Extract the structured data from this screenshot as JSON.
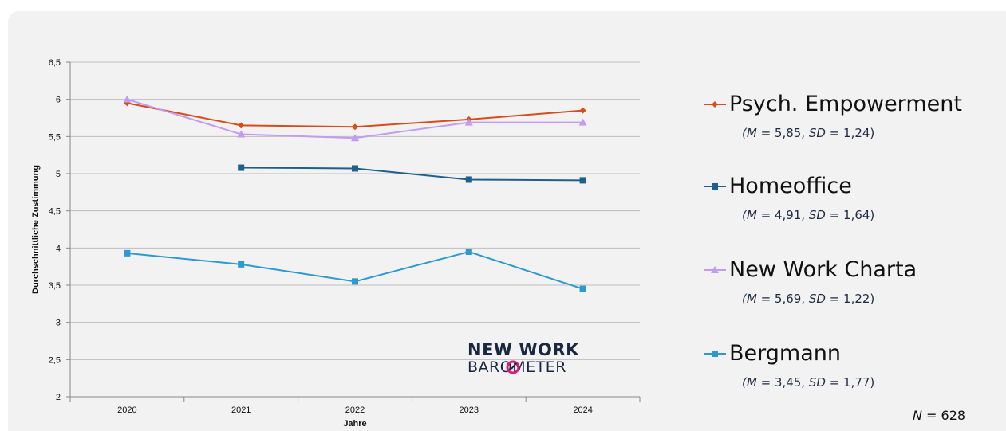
{
  "chart_data": {
    "type": "line",
    "x": [
      "2020",
      "2021",
      "2022",
      "2023",
      "2024"
    ],
    "xlabel": "Jahre",
    "ylabel": "Durchschnittliche Zustimmung",
    "ylim": [
      2,
      6.5
    ],
    "yticks": [
      "2",
      "2,5",
      "3",
      "3,5",
      "4",
      "4,5",
      "5",
      "5,5",
      "6",
      "6,5"
    ],
    "grid": true,
    "legend_position": "right",
    "series": [
      {
        "name": "Psych. Empowerment",
        "color": "#d94c1a",
        "marker": "diamond",
        "values": [
          5.95,
          5.65,
          5.63,
          5.73,
          5.85
        ],
        "stats": {
          "m_label": "M",
          "m_value": " = 5,85, ",
          "sd_label": "SD",
          "sd_value": " = 1,24)"
        }
      },
      {
        "name": "Homeoffice",
        "color": "#1f5f8b",
        "marker": "square",
        "values": [
          null,
          5.08,
          5.07,
          4.92,
          4.91
        ],
        "stats": {
          "m_label": "M",
          "m_value": " = 4,91, ",
          "sd_label": "SD",
          "sd_value": " = 1,64)"
        }
      },
      {
        "name": "New Work Charta",
        "color": "#c39bf2",
        "marker": "triangle",
        "values": [
          6.0,
          5.53,
          5.48,
          5.69,
          5.69
        ],
        "stats": {
          "m_label": "M",
          "m_value": " = 5,69, ",
          "sd_label": "SD",
          "sd_value": " = 1,22)"
        }
      },
      {
        "name": "Bergmann",
        "color": "#2c9ad0",
        "marker": "square",
        "values": [
          3.93,
          3.78,
          3.55,
          3.95,
          3.45
        ],
        "stats": {
          "m_label": "M",
          "m_value": " = 3,45, ",
          "sd_label": "SD",
          "sd_value": " = 1,77)"
        }
      }
    ]
  },
  "sample": {
    "n_label": "N",
    "n_value": " = 628"
  },
  "logo": {
    "line1": "NEW WORK",
    "line2": "BAROMETER"
  }
}
